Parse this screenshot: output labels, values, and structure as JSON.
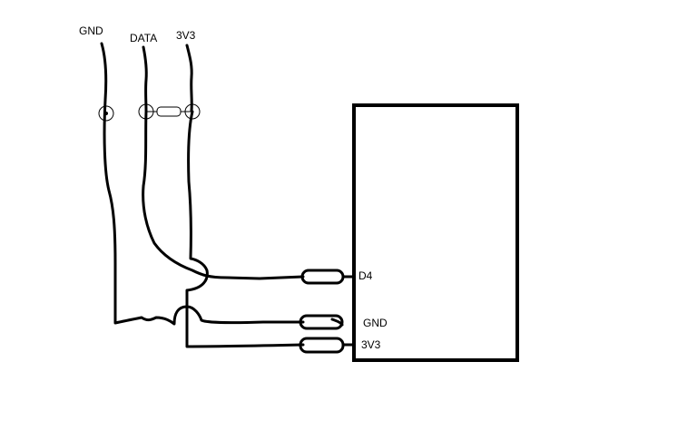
{
  "wire_labels": {
    "gnd": "GND",
    "data": "DATA",
    "vcc": "3V3"
  },
  "board_pins": {
    "d4": "D4",
    "gnd": "GND",
    "vcc": "3V3"
  },
  "colors": {
    "data_wire": "#ffff00",
    "vcc_wire": "#ff0000",
    "ground_wire": "#000000",
    "board_outline": "#000000"
  }
}
